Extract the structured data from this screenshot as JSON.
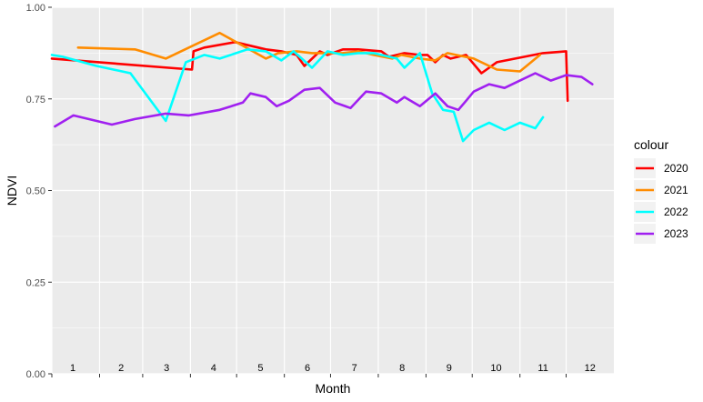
{
  "chart_data": {
    "type": "line",
    "title": "",
    "xlabel": "Month",
    "ylabel": "NDVI",
    "ylim": [
      0,
      1
    ],
    "xlim": [
      1,
      366
    ],
    "yticks": [
      0.0,
      0.25,
      0.5,
      0.75,
      1.0
    ],
    "ytick_labels": [
      "0.00",
      "0.25",
      "0.50",
      "0.75",
      "1.00"
    ],
    "xticks": [
      1,
      32,
      60,
      91,
      121,
      152,
      182,
      213,
      244,
      274,
      305,
      335
    ],
    "month_labels": [
      "1",
      "2",
      "3",
      "4",
      "5",
      "6",
      "7",
      "8",
      "9",
      "10",
      "11",
      "12"
    ],
    "grid": true,
    "legend": {
      "title": "colour",
      "position": "right"
    },
    "series": [
      {
        "name": "2020",
        "color": "#ff0000",
        "x": [
          1,
          92,
          93,
          100,
          120,
          140,
          150,
          160,
          165,
          175,
          180,
          190,
          200,
          215,
          220,
          230,
          240,
          245,
          250,
          255,
          260,
          270,
          280,
          290,
          320,
          335,
          336
        ],
        "y": [
          0.86,
          0.83,
          0.88,
          0.89,
          0.905,
          0.885,
          0.88,
          0.87,
          0.84,
          0.88,
          0.87,
          0.885,
          0.885,
          0.88,
          0.865,
          0.875,
          0.87,
          0.87,
          0.85,
          0.87,
          0.86,
          0.87,
          0.82,
          0.85,
          0.875,
          0.88,
          0.745
        ]
      },
      {
        "name": "2021",
        "color": "#ff8c00",
        "x": [
          18,
          55,
          75,
          90,
          110,
          125,
          140,
          148,
          160,
          170,
          180,
          190,
          200,
          210,
          222,
          228,
          240,
          250,
          258,
          275,
          290,
          305,
          318
        ],
        "y": [
          0.89,
          0.885,
          0.86,
          0.89,
          0.93,
          0.895,
          0.86,
          0.875,
          0.88,
          0.875,
          0.875,
          0.875,
          0.88,
          0.87,
          0.86,
          0.87,
          0.86,
          0.855,
          0.875,
          0.86,
          0.83,
          0.825,
          0.87
        ]
      },
      {
        "name": "2022",
        "color": "#00ffff",
        "x": [
          1,
          8,
          30,
          52,
          75,
          88,
          100,
          110,
          128,
          140,
          150,
          158,
          170,
          180,
          190,
          200,
          210,
          215,
          225,
          230,
          235,
          240,
          248,
          255,
          262,
          268,
          275,
          285,
          295,
          305,
          315,
          320
        ],
        "y": [
          0.87,
          0.865,
          0.84,
          0.82,
          0.69,
          0.85,
          0.87,
          0.86,
          0.885,
          0.88,
          0.855,
          0.88,
          0.835,
          0.88,
          0.87,
          0.875,
          0.875,
          0.87,
          0.86,
          0.835,
          0.855,
          0.875,
          0.765,
          0.72,
          0.715,
          0.635,
          0.665,
          0.685,
          0.665,
          0.685,
          0.67,
          0.7
        ]
      },
      {
        "name": "2023",
        "color": "#a020f0",
        "x": [
          3,
          15,
          40,
          55,
          75,
          90,
          110,
          125,
          130,
          140,
          147,
          155,
          165,
          175,
          185,
          195,
          205,
          215,
          225,
          230,
          240,
          250,
          258,
          265,
          270,
          275,
          285,
          295,
          305,
          315,
          325,
          335,
          345,
          352
        ],
        "y": [
          0.675,
          0.705,
          0.68,
          0.695,
          0.71,
          0.705,
          0.72,
          0.74,
          0.765,
          0.755,
          0.73,
          0.745,
          0.775,
          0.78,
          0.74,
          0.725,
          0.77,
          0.765,
          0.74,
          0.755,
          0.73,
          0.765,
          0.73,
          0.72,
          0.745,
          0.77,
          0.79,
          0.78,
          0.8,
          0.82,
          0.8,
          0.815,
          0.81,
          0.79
        ]
      }
    ]
  }
}
